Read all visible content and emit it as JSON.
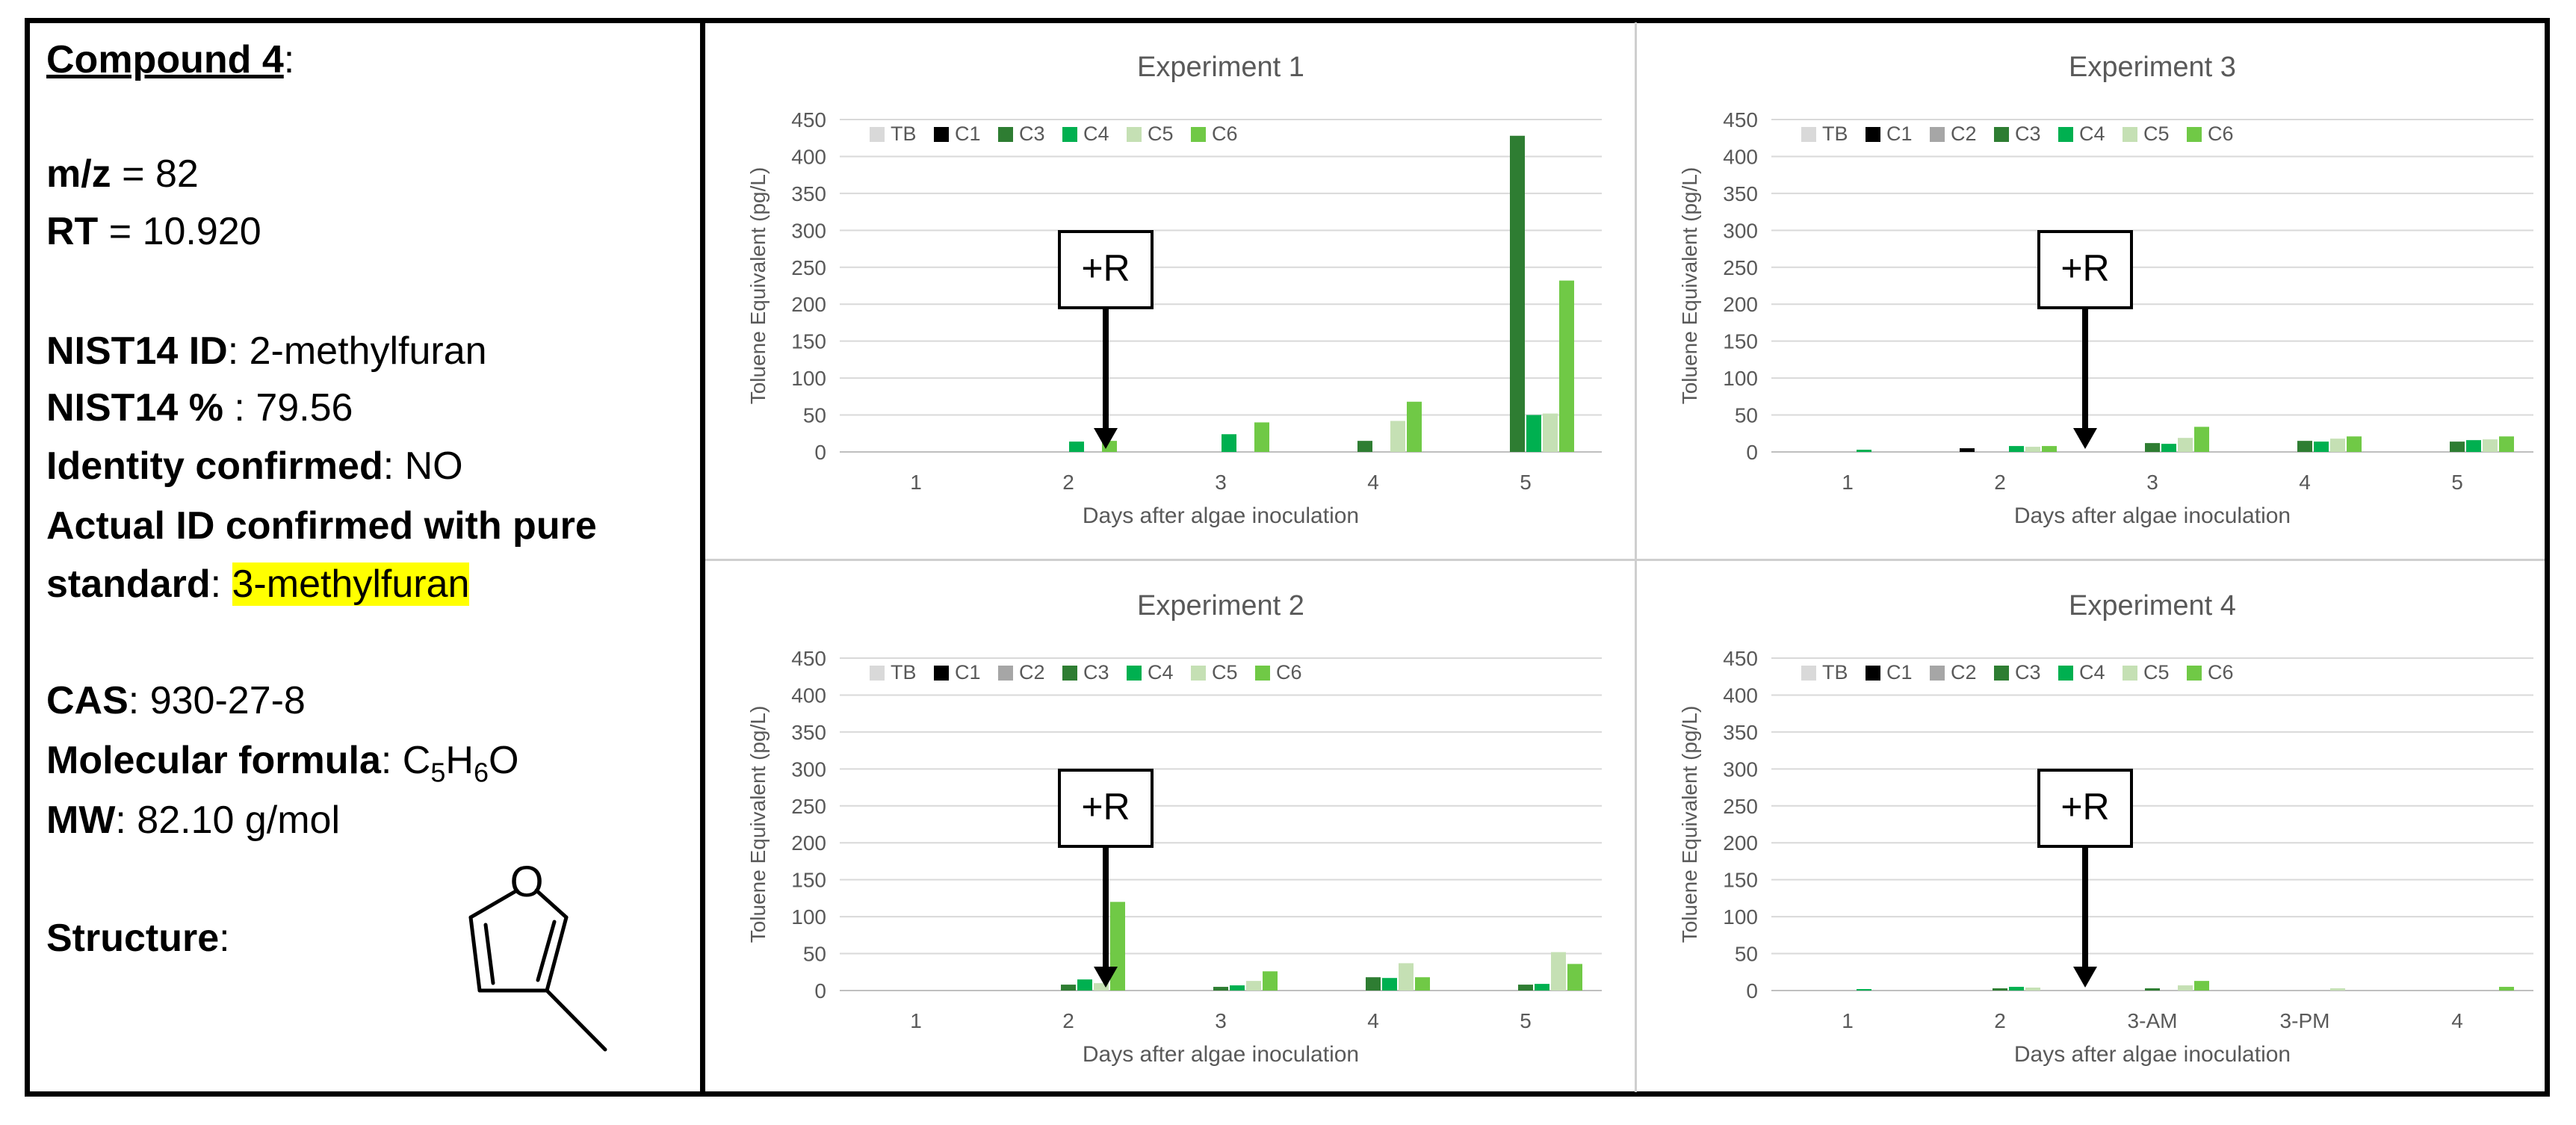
{
  "compound": {
    "title": "Compound 4",
    "title_suffix": ":",
    "mz_label": "m/z",
    "mz_value": " = 82",
    "rt_label": "RT",
    "rt_value": " = 10.920",
    "nist_id_label": "NIST14 ID",
    "nist_id_value": ": 2-methylfuran",
    "nist_pct_label": "NIST14 %",
    "nist_pct_value": " : 79.56",
    "identity_label": "Identity confirmed",
    "identity_value": ": NO",
    "actual_label_1": "Actual ID confirmed with pure",
    "actual_label_2": "standard",
    "actual_sep": ": ",
    "actual_value": "3-methylfuran",
    "cas_label": "CAS",
    "cas_value": ": 930-27-8",
    "formula_label": "Molecular formula",
    "formula_sep": ": ",
    "formula": {
      "c": "C",
      "c_n": "5",
      "h": "H",
      "h_n": "6",
      "o": "O"
    },
    "mw_label": "MW",
    "mw_value": ": 82.10 g/mol",
    "structure_label": "Structure",
    "structure_sep": ":",
    "structure_atom": "O"
  },
  "colors": {
    "TB": "#d9d9d9",
    "C1": "#000000",
    "C2": "#a6a6a6",
    "C3": "#2e7d32",
    "C4": "#00b050",
    "C5": "#c5e0b4",
    "C6": "#70c946",
    "grid": "#d9d9d9",
    "axis_text": "#595959"
  },
  "chart_data": [
    {
      "id": "exp1",
      "type": "bar",
      "title": "Experiment 1",
      "xlabel": "Days after algae inoculation",
      "ylabel": "Toluene Equivalent (pg/L)",
      "ylim": [
        0,
        450
      ],
      "yticks": [
        0,
        50,
        100,
        150,
        200,
        250,
        300,
        350,
        400,
        450
      ],
      "categories": [
        "1",
        "2",
        "3",
        "4",
        "5"
      ],
      "legend_position": "top-left",
      "annotation": "+R",
      "series": [
        {
          "name": "TB",
          "values": [
            0,
            0,
            0,
            0,
            0
          ]
        },
        {
          "name": "C1",
          "values": [
            0,
            0,
            0,
            0,
            0
          ]
        },
        {
          "name": "C3",
          "values": [
            0,
            0,
            0,
            15,
            428
          ]
        },
        {
          "name": "C4",
          "values": [
            0,
            14,
            24,
            0,
            50
          ]
        },
        {
          "name": "C5",
          "values": [
            0,
            0,
            0,
            42,
            52
          ]
        },
        {
          "name": "C6",
          "values": [
            0,
            15,
            40,
            68,
            232
          ]
        }
      ]
    },
    {
      "id": "exp3",
      "type": "bar",
      "title": "Experiment 3",
      "xlabel": "Days after algae inoculation",
      "ylabel": "Toluene Equivalent (pg/L)",
      "ylim": [
        0,
        450
      ],
      "yticks": [
        0,
        50,
        100,
        150,
        200,
        250,
        300,
        350,
        400,
        450
      ],
      "categories": [
        "1",
        "2",
        "3",
        "4",
        "5"
      ],
      "legend_position": "top-left",
      "annotation": "+R",
      "series": [
        {
          "name": "TB",
          "values": [
            0,
            0,
            0,
            0,
            0
          ]
        },
        {
          "name": "C1",
          "values": [
            0,
            5,
            0,
            0,
            0
          ]
        },
        {
          "name": "C2",
          "values": [
            0,
            0,
            0,
            0,
            0
          ]
        },
        {
          "name": "C3",
          "values": [
            0,
            0,
            12,
            15,
            14
          ]
        },
        {
          "name": "C4",
          "values": [
            3,
            8,
            11,
            14,
            16
          ]
        },
        {
          "name": "C5",
          "values": [
            0,
            7,
            19,
            18,
            17
          ]
        },
        {
          "name": "C6",
          "values": [
            0,
            8,
            34,
            21,
            21
          ]
        }
      ]
    },
    {
      "id": "exp2",
      "type": "bar",
      "title": "Experiment 2",
      "xlabel": "Days after algae inoculation",
      "ylabel": "Toluene Equivalent (pg/L)",
      "ylim": [
        0,
        450
      ],
      "yticks": [
        0,
        50,
        100,
        150,
        200,
        250,
        300,
        350,
        400,
        450
      ],
      "categories": [
        "1",
        "2",
        "3",
        "4",
        "5"
      ],
      "legend_position": "top-left",
      "annotation": "+R",
      "series": [
        {
          "name": "TB",
          "values": [
            0,
            0,
            0,
            0,
            0
          ]
        },
        {
          "name": "C1",
          "values": [
            0,
            0,
            0,
            0,
            0
          ]
        },
        {
          "name": "C2",
          "values": [
            0,
            0,
            0,
            0,
            0
          ]
        },
        {
          "name": "C3",
          "values": [
            0,
            8,
            5,
            18,
            8
          ]
        },
        {
          "name": "C4",
          "values": [
            0,
            15,
            7,
            17,
            9
          ]
        },
        {
          "name": "C5",
          "values": [
            0,
            10,
            13,
            37,
            52
          ]
        },
        {
          "name": "C6",
          "values": [
            0,
            120,
            26,
            18,
            36
          ]
        }
      ]
    },
    {
      "id": "exp4",
      "type": "bar",
      "title": "Experiment 4",
      "xlabel": "Days after algae inoculation",
      "ylabel": "Toluene Equivalent (pg/L)",
      "ylim": [
        0,
        450
      ],
      "yticks": [
        0,
        50,
        100,
        150,
        200,
        250,
        300,
        350,
        400,
        450
      ],
      "categories": [
        "1",
        "2",
        "3-AM",
        "3-PM",
        "4"
      ],
      "legend_position": "top-left",
      "annotation": "+R",
      "series": [
        {
          "name": "TB",
          "values": [
            0,
            0,
            0,
            0,
            0
          ]
        },
        {
          "name": "C1",
          "values": [
            0,
            0,
            0,
            0,
            0
          ]
        },
        {
          "name": "C2",
          "values": [
            0,
            0,
            0,
            0,
            0
          ]
        },
        {
          "name": "C3",
          "values": [
            0,
            3,
            3,
            0,
            0
          ]
        },
        {
          "name": "C4",
          "values": [
            2,
            5,
            0,
            0,
            0
          ]
        },
        {
          "name": "C5",
          "values": [
            0,
            4,
            7,
            3,
            0
          ]
        },
        {
          "name": "C6",
          "values": [
            0,
            0,
            13,
            0,
            5
          ]
        }
      ]
    }
  ]
}
